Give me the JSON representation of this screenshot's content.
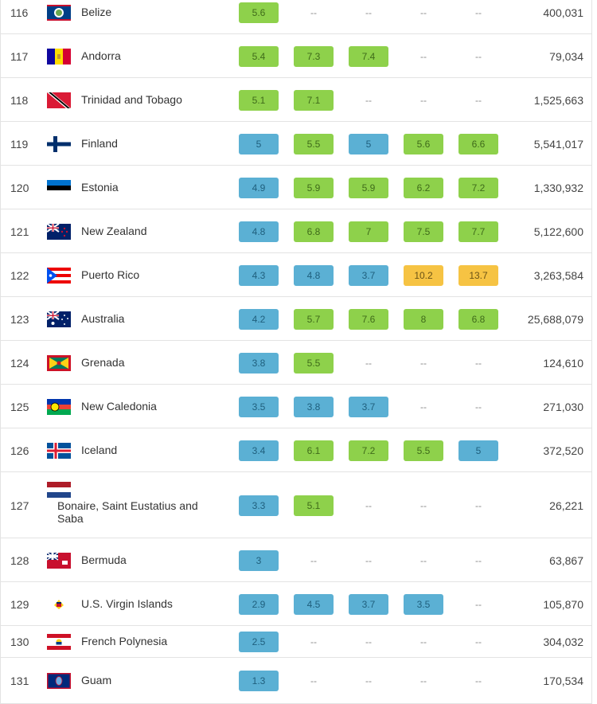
{
  "table": {
    "rows": [
      {
        "rank": "116",
        "country": "Belize",
        "values": [
          "5.6",
          "--",
          "--",
          "--",
          "--"
        ],
        "colors": [
          "green",
          null,
          null,
          null,
          null
        ],
        "population": "400,031",
        "flag": "belize-flag"
      },
      {
        "rank": "117",
        "country": "Andorra",
        "values": [
          "5.4",
          "7.3",
          "7.4",
          "--",
          "--"
        ],
        "colors": [
          "green",
          "green",
          "green",
          null,
          null
        ],
        "population": "79,034",
        "flag": "andorra-flag"
      },
      {
        "rank": "118",
        "country": "Trinidad and Tobago",
        "values": [
          "5.1",
          "7.1",
          "--",
          "--",
          "--"
        ],
        "colors": [
          "green",
          "green",
          null,
          null,
          null
        ],
        "population": "1,525,663",
        "flag": "trinidad-flag"
      },
      {
        "rank": "119",
        "country": "Finland",
        "values": [
          "5",
          "5.5",
          "5",
          "5.6",
          "6.6"
        ],
        "colors": [
          "blue",
          "green",
          "blue",
          "green",
          "green"
        ],
        "population": "5,541,017",
        "flag": "finland-flag"
      },
      {
        "rank": "120",
        "country": "Estonia",
        "values": [
          "4.9",
          "5.9",
          "5.9",
          "6.2",
          "7.2"
        ],
        "colors": [
          "blue",
          "green",
          "green",
          "green",
          "green"
        ],
        "population": "1,330,932",
        "flag": "estonia-flag"
      },
      {
        "rank": "121",
        "country": "New Zealand",
        "values": [
          "4.8",
          "6.8",
          "7",
          "7.5",
          "7.7"
        ],
        "colors": [
          "blue",
          "green",
          "green",
          "green",
          "green"
        ],
        "population": "5,122,600",
        "flag": "newzealand-flag"
      },
      {
        "rank": "122",
        "country": "Puerto Rico",
        "values": [
          "4.3",
          "4.8",
          "3.7",
          "10.2",
          "13.7"
        ],
        "colors": [
          "blue",
          "blue",
          "blue",
          "yellow",
          "yellow"
        ],
        "population": "3,263,584",
        "flag": "puertorico-flag"
      },
      {
        "rank": "123",
        "country": "Australia",
        "values": [
          "4.2",
          "5.7",
          "7.6",
          "8",
          "6.8"
        ],
        "colors": [
          "blue",
          "green",
          "green",
          "green",
          "green"
        ],
        "population": "25,688,079",
        "flag": "australia-flag"
      },
      {
        "rank": "124",
        "country": "Grenada",
        "values": [
          "3.8",
          "5.5",
          "--",
          "--",
          "--"
        ],
        "colors": [
          "blue",
          "green",
          null,
          null,
          null
        ],
        "population": "124,610",
        "flag": "grenada-flag"
      },
      {
        "rank": "125",
        "country": "New Caledonia",
        "values": [
          "3.5",
          "3.8",
          "3.7",
          "--",
          "--"
        ],
        "colors": [
          "blue",
          "blue",
          "blue",
          null,
          null
        ],
        "population": "271,030",
        "flag": "newcaledonia-flag"
      },
      {
        "rank": "126",
        "country": "Iceland",
        "values": [
          "3.4",
          "6.1",
          "7.2",
          "5.5",
          "5"
        ],
        "colors": [
          "blue",
          "green",
          "green",
          "green",
          "blue"
        ],
        "population": "372,520",
        "flag": "iceland-flag"
      },
      {
        "rank": "127",
        "country": "Bonaire, Saint Eustatius and Saba",
        "values": [
          "3.3",
          "5.1",
          "--",
          "--",
          "--"
        ],
        "colors": [
          "blue",
          "green",
          null,
          null,
          null
        ],
        "population": "26,221",
        "flag": "bonaire-flag"
      },
      {
        "rank": "128",
        "country": "Bermuda",
        "values": [
          "3",
          "--",
          "--",
          "--",
          "--"
        ],
        "colors": [
          "blue",
          null,
          null,
          null,
          null
        ],
        "population": "63,867",
        "flag": "bermuda-flag"
      },
      {
        "rank": "129",
        "country": "U.S. Virgin Islands",
        "values": [
          "2.9",
          "4.5",
          "3.7",
          "3.5",
          "--"
        ],
        "colors": [
          "blue",
          "blue",
          "blue",
          "blue",
          null
        ],
        "population": "105,870",
        "flag": "usvi-flag"
      },
      {
        "rank": "130",
        "country": "French Polynesia",
        "values": [
          "2.5",
          "--",
          "--",
          "--",
          "--"
        ],
        "colors": [
          "blue",
          null,
          null,
          null,
          null
        ],
        "population": "304,032",
        "flag": "frenchpolynesia-flag"
      },
      {
        "rank": "131",
        "country": "Guam",
        "values": [
          "1.3",
          "--",
          "--",
          "--",
          "--"
        ],
        "colors": [
          "blue",
          null,
          null,
          null,
          null
        ],
        "population": "170,534",
        "flag": "guam-flag"
      }
    ]
  },
  "colors": {
    "green": "#8ed14b",
    "blue": "#5bb0d4",
    "yellow": "#f6c343"
  }
}
